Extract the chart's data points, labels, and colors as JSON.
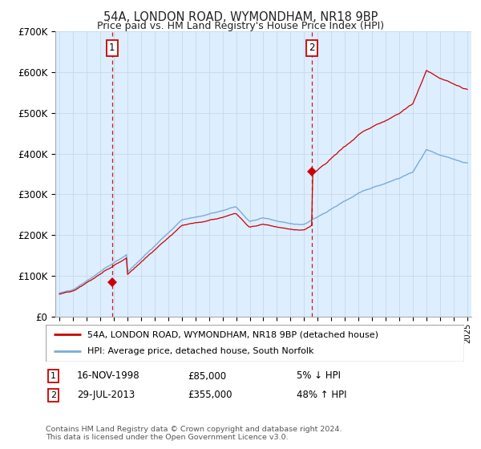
{
  "title": "54A, LONDON ROAD, WYMONDHAM, NR18 9BP",
  "subtitle": "Price paid vs. HM Land Registry's House Price Index (HPI)",
  "legend_entry1": "54A, LONDON ROAD, WYMONDHAM, NR18 9BP (detached house)",
  "legend_entry2": "HPI: Average price, detached house, South Norfolk",
  "note1_date": "16-NOV-1998",
  "note1_price": "£85,000",
  "note1_hpi": "5% ↓ HPI",
  "note2_date": "29-JUL-2013",
  "note2_price": "£355,000",
  "note2_hpi": "48% ↑ HPI",
  "footer": "Contains HM Land Registry data © Crown copyright and database right 2024.\nThis data is licensed under the Open Government Licence v3.0.",
  "hpi_color": "#7aadd4",
  "price_color": "#cc0000",
  "vline_color": "#cc0000",
  "bg_color": "#ddeeff",
  "grid_color": "#c8d8e8",
  "ylim": [
    0,
    700000
  ],
  "yticks": [
    0,
    100000,
    200000,
    300000,
    400000,
    500000,
    600000,
    700000
  ],
  "sale1_x": 1998.88,
  "sale1_y": 85000,
  "sale2_x": 2013.58,
  "sale2_y": 355000,
  "xmin": 1994.7,
  "xmax": 2025.3,
  "sale1_hpi": 89500,
  "sale2_hpi": 240000
}
